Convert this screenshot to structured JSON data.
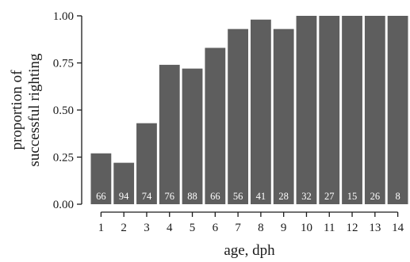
{
  "colors": {
    "bar": "#5e5e5e",
    "axis": "#1a1a1a",
    "count_label": "#ffffff",
    "background": "#ffffff"
  },
  "chart_data": {
    "type": "bar",
    "xlabel": "age, dph",
    "ylabel_lines": [
      "proportion of",
      "successful righting"
    ],
    "categories": [
      "1",
      "2",
      "3",
      "4",
      "5",
      "6",
      "7",
      "8",
      "9",
      "10",
      "11",
      "12",
      "13",
      "14"
    ],
    "values": [
      0.27,
      0.22,
      0.43,
      0.74,
      0.72,
      0.83,
      0.93,
      0.98,
      0.93,
      1.0,
      1.0,
      1.0,
      1.0,
      1.0
    ],
    "counts": [
      "66",
      "94",
      "74",
      "76",
      "88",
      "66",
      "56",
      "41",
      "28",
      "32",
      "27",
      "15",
      "26",
      "8"
    ],
    "ylim": [
      0,
      1.0
    ],
    "yticks": [
      0,
      0.25,
      0.5,
      0.75,
      1.0
    ],
    "ytick_labels": [
      "0.00",
      "0.25",
      "0.50",
      "0.75",
      "1.00"
    ],
    "grid": false,
    "legend": "none"
  }
}
